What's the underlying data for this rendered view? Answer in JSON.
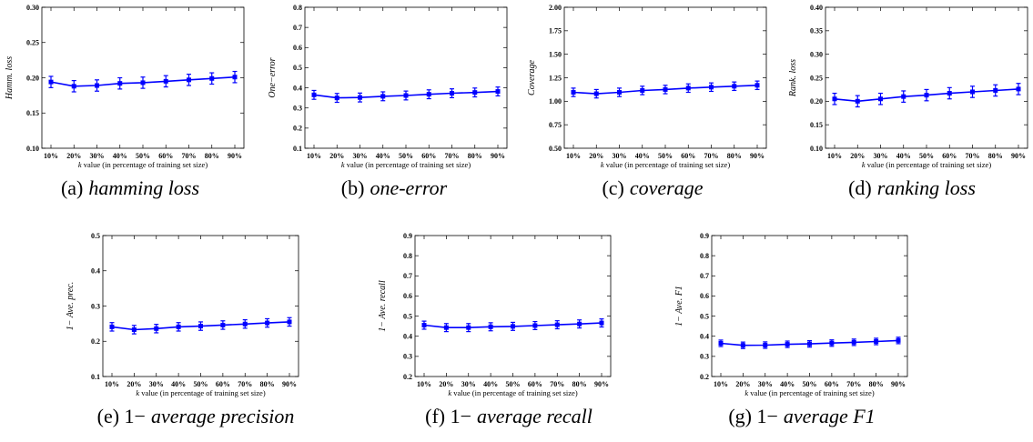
{
  "chart_data": [
    {
      "type": "line",
      "caption_prefix": "(a)",
      "caption_italic": "hamming loss",
      "ylabel": "Hamm. loss",
      "xlabel_k": "k",
      "xlabel_rest": "value (in percentage of training set size)",
      "categories": [
        "10%",
        "20%",
        "30%",
        "40%",
        "50%",
        "60%",
        "70%",
        "80%",
        "90%"
      ],
      "ylim": [
        0.1,
        0.3
      ],
      "yticks": [
        "0.10",
        "0.15",
        "0.20",
        "0.25",
        "0.30"
      ],
      "values": [
        0.194,
        0.188,
        0.189,
        0.192,
        0.193,
        0.195,
        0.197,
        0.199,
        0.201
      ],
      "errors": [
        0.008,
        0.008,
        0.008,
        0.008,
        0.008,
        0.008,
        0.008,
        0.008,
        0.008
      ],
      "color": "#0000ff"
    },
    {
      "type": "line",
      "caption_prefix": "(b)",
      "caption_italic": "one-error",
      "ylabel": "One−error",
      "xlabel_k": "k",
      "xlabel_rest": "value (in percentage of training set size)",
      "categories": [
        "10%",
        "20%",
        "30%",
        "40%",
        "50%",
        "60%",
        "70%",
        "80%",
        "90%"
      ],
      "ylim": [
        0.1,
        0.8
      ],
      "yticks": [
        "0.1",
        "0.2",
        "0.3",
        "0.4",
        "0.5",
        "0.6",
        "0.7",
        "0.8"
      ],
      "values": [
        0.365,
        0.35,
        0.352,
        0.358,
        0.362,
        0.368,
        0.373,
        0.377,
        0.382
      ],
      "errors": [
        0.022,
        0.022,
        0.022,
        0.022,
        0.022,
        0.022,
        0.022,
        0.022,
        0.022
      ],
      "color": "#0000ff"
    },
    {
      "type": "line",
      "caption_prefix": "(c)",
      "caption_italic": "coverage",
      "ylabel": "Coverage",
      "xlabel_k": "k",
      "xlabel_rest": "value (in percentage of training set size)",
      "categories": [
        "10%",
        "20%",
        "30%",
        "40%",
        "50%",
        "60%",
        "70%",
        "80%",
        "90%"
      ],
      "ylim": [
        0.5,
        2.0
      ],
      "yticks": [
        "0.50",
        "0.75",
        "1.00",
        "1.25",
        "1.50",
        "1.75",
        "2.00"
      ],
      "values": [
        1.095,
        1.08,
        1.095,
        1.115,
        1.125,
        1.14,
        1.15,
        1.16,
        1.17
      ],
      "errors": [
        0.045,
        0.045,
        0.045,
        0.045,
        0.045,
        0.045,
        0.045,
        0.045,
        0.045
      ],
      "color": "#0000ff"
    },
    {
      "type": "line",
      "caption_prefix": "(d)",
      "caption_italic": "ranking loss",
      "ylabel": "Rank. loss",
      "xlabel_k": "k",
      "xlabel_rest": "value (in percentage of training set size)",
      "categories": [
        "10%",
        "20%",
        "30%",
        "40%",
        "50%",
        "60%",
        "70%",
        "80%",
        "90%"
      ],
      "ylim": [
        0.1,
        0.4
      ],
      "yticks": [
        "0.10",
        "0.15",
        "0.20",
        "0.25",
        "0.30",
        "0.35",
        "0.40"
      ],
      "values": [
        0.205,
        0.2,
        0.205,
        0.21,
        0.213,
        0.217,
        0.22,
        0.223,
        0.226
      ],
      "errors": [
        0.012,
        0.012,
        0.012,
        0.012,
        0.012,
        0.012,
        0.012,
        0.012,
        0.012
      ],
      "color": "#0000ff"
    },
    {
      "type": "line",
      "caption_prefix": "(e) 1−",
      "caption_italic": "average precision",
      "ylabel": "1− Ave. prec.",
      "xlabel_k": "k",
      "xlabel_rest": "value (in percentage of training set size)",
      "categories": [
        "10%",
        "20%",
        "30%",
        "40%",
        "50%",
        "60%",
        "70%",
        "80%",
        "90%"
      ],
      "ylim": [
        0.1,
        0.5
      ],
      "yticks": [
        "0.1",
        "0.2",
        "0.3",
        "0.4",
        "0.5"
      ],
      "values": [
        0.241,
        0.233,
        0.236,
        0.241,
        0.243,
        0.246,
        0.249,
        0.252,
        0.255
      ],
      "errors": [
        0.012,
        0.012,
        0.012,
        0.012,
        0.012,
        0.012,
        0.012,
        0.012,
        0.012
      ],
      "color": "#0000ff"
    },
    {
      "type": "line",
      "caption_prefix": "(f) 1−",
      "caption_italic": "average recall",
      "ylabel": "1− Ave. recall",
      "xlabel_k": "k",
      "xlabel_rest": "value (in percentage of training set size)",
      "categories": [
        "10%",
        "20%",
        "30%",
        "40%",
        "50%",
        "60%",
        "70%",
        "80%",
        "90%"
      ],
      "ylim": [
        0.2,
        0.9
      ],
      "yticks": [
        "0.2",
        "0.3",
        "0.4",
        "0.5",
        "0.6",
        "0.7",
        "0.8",
        "0.9"
      ],
      "values": [
        0.455,
        0.443,
        0.443,
        0.447,
        0.449,
        0.453,
        0.457,
        0.461,
        0.466
      ],
      "errors": [
        0.02,
        0.02,
        0.02,
        0.02,
        0.02,
        0.02,
        0.02,
        0.02,
        0.02
      ],
      "color": "#0000ff"
    },
    {
      "type": "line",
      "caption_prefix": "(g) 1−",
      "caption_italic": "average F1",
      "ylabel": "1− Ave. F1",
      "xlabel_k": "k",
      "xlabel_rest": "value (in percentage of training set size)",
      "categories": [
        "10%",
        "20%",
        "30%",
        "40%",
        "50%",
        "60%",
        "70%",
        "80%",
        "90%"
      ],
      "ylim": [
        0.2,
        0.9
      ],
      "yticks": [
        "0.2",
        "0.3",
        "0.4",
        "0.5",
        "0.6",
        "0.7",
        "0.8",
        "0.9"
      ],
      "values": [
        0.365,
        0.355,
        0.356,
        0.36,
        0.362,
        0.366,
        0.37,
        0.374,
        0.379
      ],
      "errors": [
        0.016,
        0.016,
        0.016,
        0.016,
        0.016,
        0.016,
        0.016,
        0.016,
        0.016
      ],
      "color": "#0000ff"
    }
  ]
}
